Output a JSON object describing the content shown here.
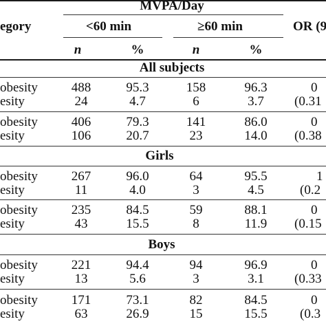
{
  "header": {
    "mvpa_title": "MVPA/Day",
    "category": "egory",
    "lt60": "<60 min",
    "ge60": "≥60 min",
    "or": "OR (9",
    "n": "n",
    "pct": "%"
  },
  "sections": [
    {
      "title": "All subjects",
      "groups": [
        {
          "rows": [
            {
              "label": "obesity",
              "n1": "488",
              "p1": "95.3",
              "n2": "158",
              "p2": "96.3",
              "or": "0"
            },
            {
              "label": "esity",
              "n1": "24",
              "p1": "4.7",
              "n2": "6",
              "p2": "3.7",
              "or": "(0.31"
            }
          ]
        },
        {
          "rows": [
            {
              "label": "obesity",
              "n1": "406",
              "p1": "79.3",
              "n2": "141",
              "p2": "86.0",
              "or": "0"
            },
            {
              "label": "esity",
              "n1": "106",
              "p1": "20.7",
              "n2": "23",
              "p2": "14.0",
              "or": "(0.38"
            }
          ]
        }
      ]
    },
    {
      "title": "Girls",
      "groups": [
        {
          "rows": [
            {
              "label": "obesity",
              "n1": "267",
              "p1": "96.0",
              "n2": "64",
              "p2": "95.5",
              "or": "1"
            },
            {
              "label": "esity",
              "n1": "11",
              "p1": "4.0",
              "n2": "3",
              "p2": "4.5",
              "or": "(0.2"
            }
          ]
        },
        {
          "rows": [
            {
              "label": "obesity",
              "n1": "235",
              "p1": "84.5",
              "n2": "59",
              "p2": "88.1",
              "or": "0"
            },
            {
              "label": "esity",
              "n1": "43",
              "p1": "15.5",
              "n2": "8",
              "p2": "11.9",
              "or": "(0.15"
            }
          ]
        }
      ]
    },
    {
      "title": "Boys",
      "groups": [
        {
          "rows": [
            {
              "label": "obesity",
              "n1": "221",
              "p1": "94.4",
              "n2": "94",
              "p2": "96.9",
              "or": "0"
            },
            {
              "label": "esity",
              "n1": "13",
              "p1": "5.6",
              "n2": "3",
              "p2": "3.1",
              "or": "(0.33"
            }
          ]
        },
        {
          "rows": [
            {
              "label": "obesity",
              "n1": "171",
              "p1": "73.1",
              "n2": "82",
              "p2": "84.5",
              "or": "0"
            },
            {
              "label": "esity",
              "n1": "63",
              "p1": "26.9",
              "n2": "15",
              "p2": "15.5",
              "or": "(0.3"
            }
          ]
        }
      ]
    }
  ]
}
